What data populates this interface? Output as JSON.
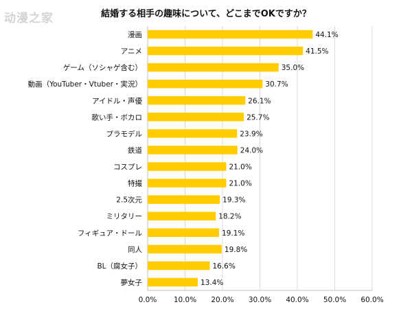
{
  "watermark": "动漫之家",
  "chart_data": {
    "type": "bar",
    "orientation": "horizontal",
    "title": "結婚する相手の趣味について、どこまでOKですか？",
    "xlabel": "",
    "ylabel": "",
    "categories": [
      "漫画",
      "アニメ",
      "ゲーム（ソシャゲ含む）",
      "動画（YouTuber・Vtuber・実況）",
      "アイドル・声優",
      "歌い手・ボカロ",
      "プラモデル",
      "鉄道",
      "コスプレ",
      "特撮",
      "2.5次元",
      "ミリタリー",
      "フィギュア・ドール",
      "同人",
      "BL（腐女子）",
      "夢女子"
    ],
    "values": [
      44.1,
      41.5,
      35.0,
      30.7,
      26.1,
      25.7,
      23.9,
      24.0,
      21.0,
      21.0,
      19.3,
      18.2,
      19.1,
      19.8,
      16.6,
      13.4
    ],
    "value_labels": [
      "44.1%",
      "41.5%",
      "35.0%",
      "30.7%",
      "26.1%",
      "25.7%",
      "23.9%",
      "24.0%",
      "21.0%",
      "21.0%",
      "19.3%",
      "18.2%",
      "19.1%",
      "19.8%",
      "16.6%",
      "13.4%"
    ],
    "xlim": [
      0,
      60
    ],
    "x_ticks": [
      0,
      10,
      20,
      30,
      40,
      50,
      60
    ],
    "x_tick_labels": [
      "0.0%",
      "10.0%",
      "20.0%",
      "30.0%",
      "40.0%",
      "50.0%",
      "60.0%"
    ],
    "grid": true,
    "legend": "none",
    "colors": {
      "bar": "#FFCC00",
      "grid": "#d9d9d9",
      "axis": "#bfbfbf",
      "text": "#111111"
    }
  }
}
